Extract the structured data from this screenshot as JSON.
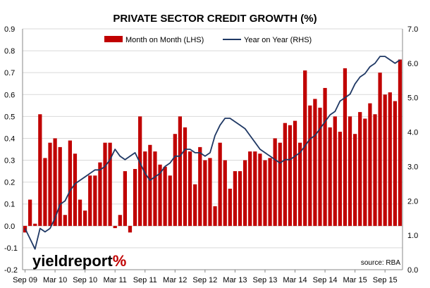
{
  "logo": {
    "main": "yieldreport",
    "pct": "%"
  },
  "source": "source: RBA",
  "colors": {
    "bar": "#c00000",
    "line": "#1f3864",
    "grid": "#d9d9d9",
    "logo_pct_a": "#5aa02c",
    "logo_pct_b": "#c00000"
  },
  "chart_data": {
    "type": "bar",
    "title": "PRIVATE SECTOR CREDIT GROWTH (%)",
    "legend_position": "top",
    "grid": true,
    "x_tick_labels": [
      "Sep 09",
      "Mar 10",
      "Sep 10",
      "Mar 11",
      "Sep 11",
      "Mar 12",
      "Sep 12",
      "Mar 13",
      "Sep 13",
      "Mar 14",
      "Sep 14",
      "Mar 15",
      "Sep 15"
    ],
    "x_tick_positions": [
      0,
      6,
      12,
      18,
      24,
      30,
      36,
      42,
      48,
      54,
      60,
      66,
      72
    ],
    "y_left": {
      "lim": [
        -0.2,
        0.9
      ],
      "ticks": [
        -0.2,
        -0.1,
        0.0,
        0.1,
        0.2,
        0.3,
        0.4,
        0.5,
        0.6,
        0.7,
        0.8,
        0.9
      ],
      "tick_labels": [
        "-0.2",
        "-0.1",
        "0.0",
        "0.1",
        "0.2",
        "0.3",
        "0.4",
        "0.5",
        "0.6",
        "0.7",
        "0.8",
        "0.9"
      ]
    },
    "y_right": {
      "lim": [
        0.0,
        7.0
      ],
      "ticks": [
        0,
        1,
        2,
        3,
        4,
        5,
        6,
        7
      ],
      "tick_labels": [
        "0.0",
        "1.0",
        "2.0",
        "3.0",
        "4.0",
        "5.0",
        "6.0",
        "7.0"
      ]
    },
    "series": [
      {
        "name": "Month on Month (LHS)",
        "kind": "bar",
        "axis": "left",
        "values": [
          -0.03,
          0.12,
          0.01,
          0.51,
          0.31,
          0.38,
          0.4,
          0.36,
          0.05,
          0.39,
          0.33,
          0.12,
          0.07,
          0.23,
          0.23,
          0.29,
          0.38,
          0.38,
          -0.01,
          0.05,
          0.25,
          -0.03,
          0.26,
          0.5,
          0.34,
          0.37,
          0.34,
          0.28,
          0.27,
          0.23,
          0.42,
          0.5,
          0.45,
          0.34,
          0.19,
          0.36,
          0.3,
          0.31,
          0.09,
          0.38,
          0.3,
          0.17,
          0.25,
          0.25,
          0.3,
          0.34,
          0.34,
          0.33,
          0.3,
          0.31,
          0.4,
          0.38,
          0.47,
          0.46,
          0.48,
          0.38,
          0.71,
          0.55,
          0.58,
          0.54,
          0.63,
          0.45,
          0.5,
          0.43,
          0.72,
          0.5,
          0.42,
          0.52,
          0.49,
          0.56,
          0.51,
          0.7,
          0.6,
          0.61,
          0.57,
          0.76
        ]
      },
      {
        "name": "Year on Year (RHS)",
        "kind": "line",
        "axis": "right",
        "values": [
          1.2,
          0.9,
          0.6,
          1.2,
          1.1,
          1.2,
          1.5,
          1.9,
          2.0,
          2.3,
          2.5,
          2.6,
          2.7,
          2.8,
          2.9,
          2.9,
          3.0,
          3.2,
          3.5,
          3.3,
          3.2,
          3.3,
          3.4,
          3.1,
          2.8,
          2.6,
          2.7,
          2.8,
          3.0,
          3.1,
          3.3,
          3.3,
          3.5,
          3.5,
          3.4,
          3.4,
          3.3,
          3.4,
          3.9,
          4.2,
          4.4,
          4.4,
          4.3,
          4.2,
          4.1,
          3.9,
          3.7,
          3.5,
          3.4,
          3.3,
          3.2,
          3.1,
          3.2,
          3.2,
          3.3,
          3.4,
          3.6,
          3.8,
          3.9,
          4.1,
          4.3,
          4.5,
          4.6,
          4.9,
          5.0,
          5.1,
          5.4,
          5.6,
          5.7,
          5.9,
          6.0,
          6.2,
          6.2,
          6.1,
          6.0,
          6.1
        ]
      }
    ]
  }
}
